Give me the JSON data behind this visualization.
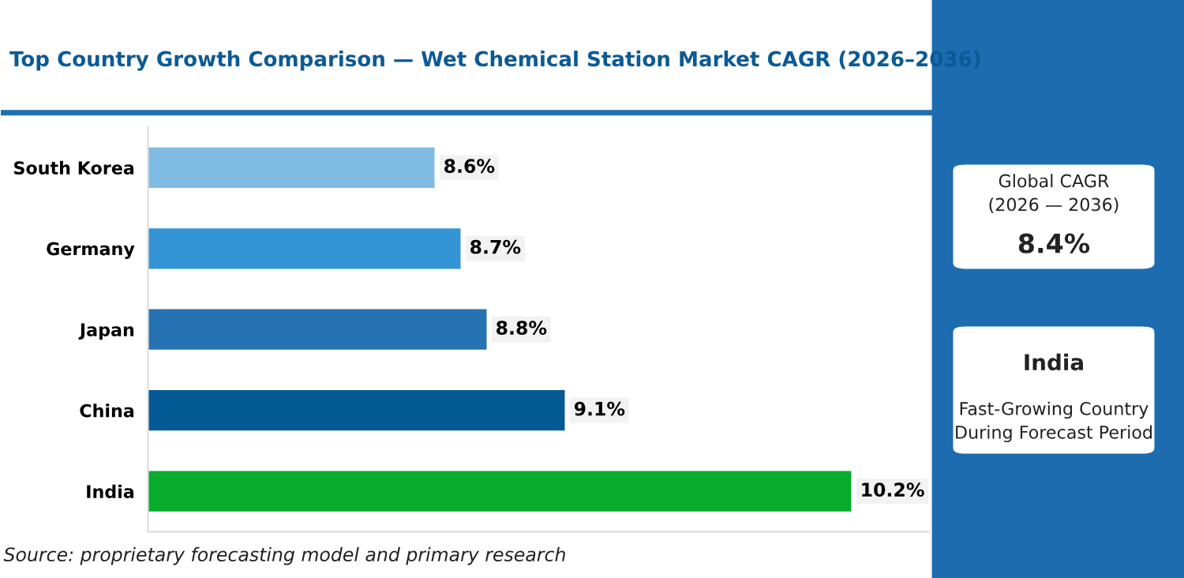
{
  "chart_data": {
    "type": "bar",
    "orientation": "horizontal",
    "title": "Top Country Growth Comparison — Wet Chemical Station Market CAGR (2026–2036)",
    "categories": [
      "South Korea",
      "Germany",
      "Japan",
      "China",
      "India"
    ],
    "values": [
      8.6,
      8.7,
      8.8,
      9.1,
      10.2
    ],
    "colors": [
      "#7fbbe3",
      "#3394d6",
      "#2573b3",
      "#045a94",
      "#08ac2c"
    ],
    "value_labels": [
      "8.6%",
      "8.7%",
      "8.8%",
      "9.1%",
      "10.2%"
    ],
    "xlim": [
      7.5,
      10.5
    ],
    "tick_labels": "y",
    "grid": false,
    "legend": false,
    "annotations": [
      "Source: proprietary forecasting model and primary research",
      "Global CAGR\n(2026 — 2036)",
      "8.4%",
      "India",
      "Fast-Growing Country\nDuring Forecast Period"
    ]
  }
}
